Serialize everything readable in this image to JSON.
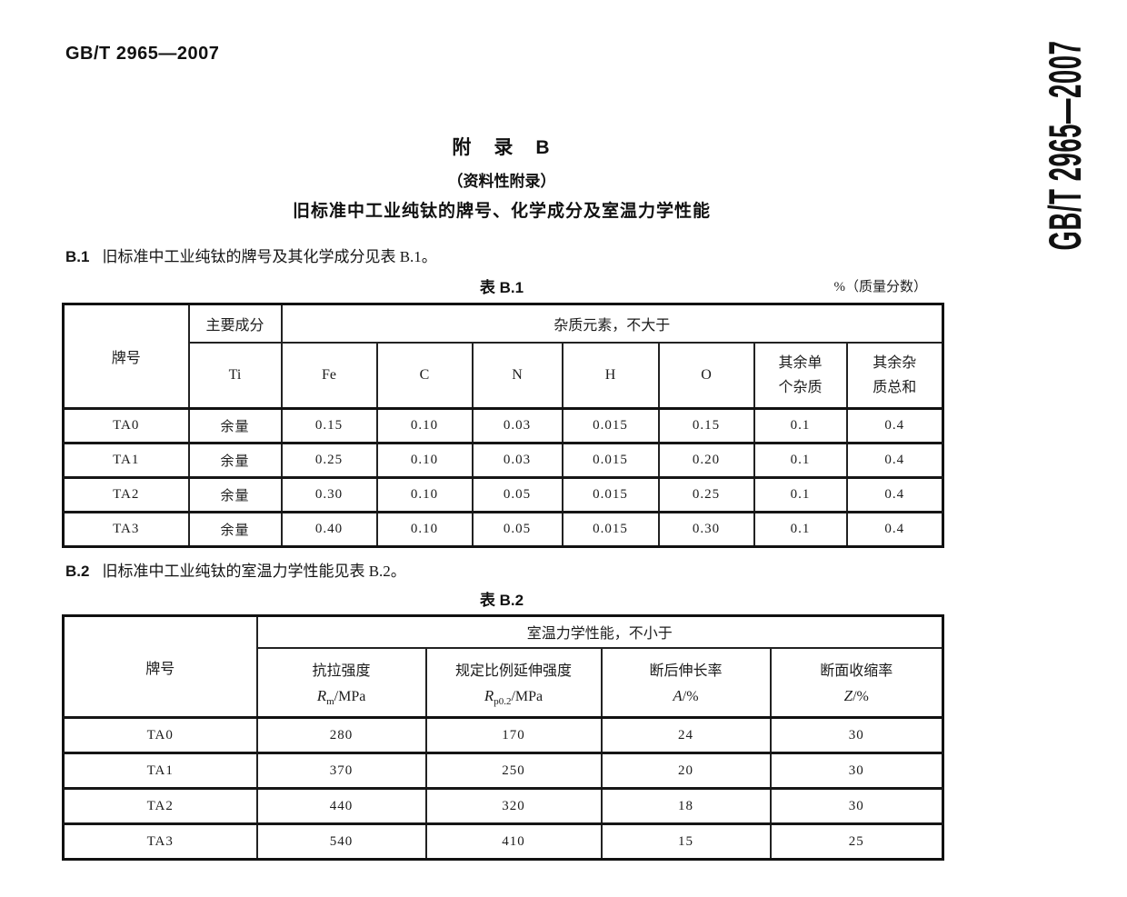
{
  "page": {
    "code_top_left": "GB/T 2965—2007",
    "code_side": "GB/T 2965—2007"
  },
  "appendix": {
    "title": "附　录　B",
    "subtitle": "（资料性附录）",
    "heading": "旧标准中工业纯钛的牌号、化学成分及室温力学性能"
  },
  "section_b1": {
    "label": "B.1",
    "text": "旧标准中工业纯钛的牌号及其化学成分见表 B.1。"
  },
  "section_b2": {
    "label": "B.2",
    "text": "旧标准中工业纯钛的室温力学性能见表 B.2。"
  },
  "table_b1": {
    "caption": "表 B.1",
    "unit_note": "%（质量分数）",
    "headers": {
      "grade": "牌号",
      "main_component": "主要成分",
      "ti": "Ti",
      "impurities_group": "杂质元素，不大于",
      "fe": "Fe",
      "c": "C",
      "n": "N",
      "h": "H",
      "o": "O",
      "other_single": "其余单\n个杂质",
      "other_total": "其余杂\n质总和"
    },
    "rows": [
      [
        "TA0",
        "余量",
        "0.15",
        "0.10",
        "0.03",
        "0.015",
        "0.15",
        "0.1",
        "0.4"
      ],
      [
        "TA1",
        "余量",
        "0.25",
        "0.10",
        "0.03",
        "0.015",
        "0.20",
        "0.1",
        "0.4"
      ],
      [
        "TA2",
        "余量",
        "0.30",
        "0.10",
        "0.05",
        "0.015",
        "0.25",
        "0.1",
        "0.4"
      ],
      [
        "TA3",
        "余量",
        "0.40",
        "0.10",
        "0.05",
        "0.015",
        "0.30",
        "0.1",
        "0.4"
      ]
    ]
  },
  "table_b2": {
    "caption": "表 B.2",
    "headers": {
      "grade": "牌号",
      "group": "室温力学性能，不小于",
      "cols": [
        {
          "name": "抗拉强度",
          "symbol": "R",
          "sub": "m",
          "unit": "/MPa"
        },
        {
          "name": "规定比例延伸强度",
          "symbol": "R",
          "sub": "p0.2",
          "unit": "/MPa"
        },
        {
          "name": "断后伸长率",
          "symbol": "A",
          "sub": "",
          "unit": "/%"
        },
        {
          "name": "断面收缩率",
          "symbol": "Z",
          "sub": "",
          "unit": "/%"
        }
      ]
    },
    "rows": [
      [
        "TA0",
        "280",
        "170",
        "24",
        "30"
      ],
      [
        "TA1",
        "370",
        "250",
        "20",
        "30"
      ],
      [
        "TA2",
        "440",
        "320",
        "18",
        "30"
      ],
      [
        "TA3",
        "540",
        "410",
        "15",
        "25"
      ]
    ]
  },
  "colors": {
    "ink": "#1a1a1a",
    "paper": "#ffffff",
    "smudge": "#b9c8de"
  }
}
